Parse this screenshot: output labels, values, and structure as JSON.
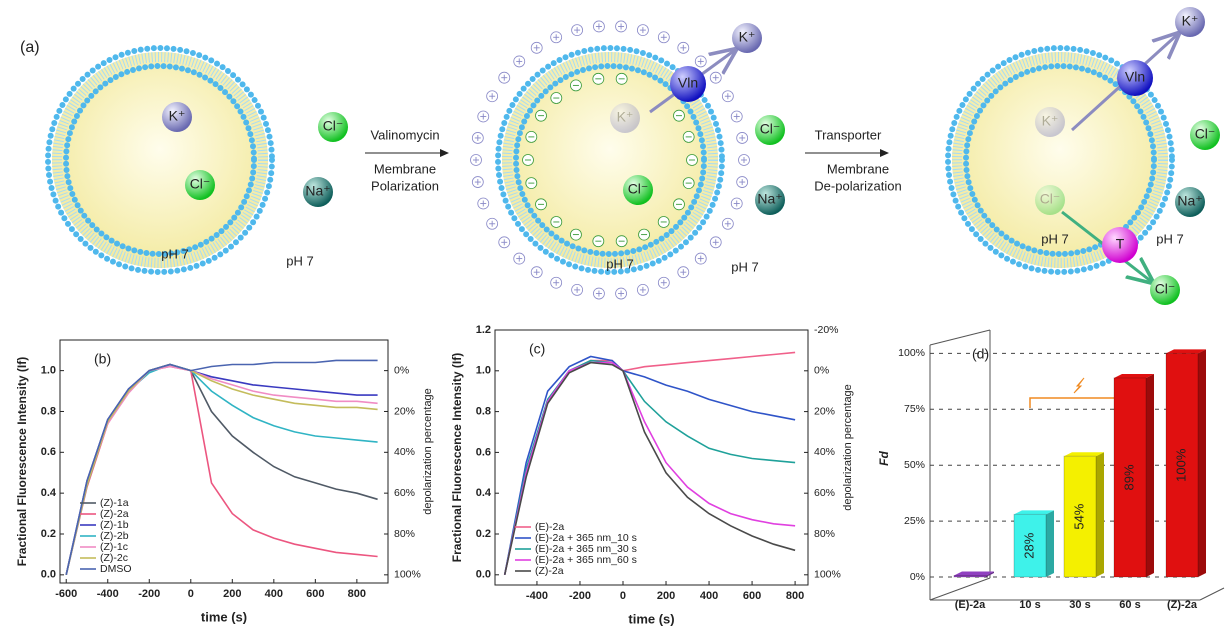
{
  "diagram": {
    "label": "(a)",
    "vesicles": [
      {
        "ions": [
          "K⁺",
          "Cl⁻",
          "Cl⁻",
          "Na⁺"
        ],
        "ph": [
          "pH 7",
          "pH 7"
        ]
      },
      {
        "ions": [
          "K⁺",
          "Cl⁻",
          "Cl⁻",
          "Na⁺",
          "K⁺"
        ],
        "carriers": [
          "Vln"
        ],
        "ph": [
          "pH 7",
          "pH 7"
        ]
      },
      {
        "ions": [
          "K⁺",
          "Cl⁻",
          "Cl⁻",
          "Na⁺",
          "K⁺",
          "Cl⁻"
        ],
        "carriers": [
          "Vln",
          "T"
        ],
        "ph": [
          "pH 7",
          "pH 7"
        ]
      }
    ],
    "steps": [
      {
        "reagent": "Valinomycin",
        "effect": [
          "Membrane",
          "Polarization"
        ]
      },
      {
        "reagent": "Transporter",
        "effect": [
          "Membrane",
          "De-polarization"
        ]
      }
    ]
  },
  "chart_data": [
    {
      "type": "line",
      "label": "(b)",
      "xlabel": "time (s)",
      "ylabel": "Fractional Fluorescence Intensity (If)",
      "y2label": "depolarization percentage",
      "x": [
        -600,
        -500,
        -400,
        -300,
        -200,
        -100,
        0,
        100,
        200,
        300,
        400,
        500,
        600,
        700,
        800,
        900
      ],
      "xlim": [
        -630,
        950
      ],
      "xticks": [
        -600,
        -400,
        -200,
        0,
        200,
        400,
        600,
        800
      ],
      "ylim": [
        -0.04,
        1.15
      ],
      "yticks": [
        {
          "value": 0,
          "label": "0.0"
        },
        0.2,
        0.4,
        0.6,
        0.8,
        {
          "value": 1,
          "label": "1.0"
        }
      ],
      "y2lim": [
        104,
        -15
      ],
      "y2ticks": [
        {
          "value": 0,
          "label": "0%"
        },
        {
          "value": 20,
          "label": "20%"
        },
        {
          "value": 40,
          "label": "40%"
        },
        {
          "value": 60,
          "label": "60%"
        },
        {
          "value": 80,
          "label": "80%"
        },
        {
          "value": 100,
          "label": "100%"
        }
      ],
      "legend": "lower left",
      "series": [
        {
          "name": "(Z)-1a",
          "color": "#505a66",
          "values": [
            0.0,
            0.45,
            0.75,
            0.9,
            1.0,
            1.03,
            1.0,
            0.8,
            0.68,
            0.6,
            0.53,
            0.48,
            0.45,
            0.42,
            0.4,
            0.37
          ]
        },
        {
          "name": "(Z)-2a",
          "color": "#ec5680",
          "values": [
            0.0,
            0.43,
            0.74,
            0.9,
            1.0,
            1.02,
            1.0,
            0.45,
            0.3,
            0.22,
            0.18,
            0.15,
            0.13,
            0.11,
            0.1,
            0.09
          ]
        },
        {
          "name": "(Z)-1b",
          "color": "#3a3ac0",
          "values": [
            0.0,
            0.46,
            0.76,
            0.91,
            1.0,
            1.03,
            1.0,
            0.97,
            0.95,
            0.93,
            0.92,
            0.91,
            0.9,
            0.89,
            0.88,
            0.88
          ]
        },
        {
          "name": "(Z)-2b",
          "color": "#30b4c4",
          "values": [
            0.0,
            0.44,
            0.75,
            0.9,
            0.99,
            1.03,
            1.0,
            0.9,
            0.83,
            0.77,
            0.73,
            0.7,
            0.68,
            0.67,
            0.66,
            0.65
          ]
        },
        {
          "name": "(Z)-1c",
          "color": "#f08cc4",
          "values": [
            0.0,
            0.45,
            0.74,
            0.89,
            1.0,
            1.02,
            1.0,
            0.96,
            0.93,
            0.9,
            0.88,
            0.87,
            0.86,
            0.85,
            0.85,
            0.84
          ]
        },
        {
          "name": "(Z)-2c",
          "color": "#c4bc5c",
          "values": [
            0.0,
            0.44,
            0.75,
            0.9,
            1.0,
            1.03,
            1.0,
            0.95,
            0.91,
            0.88,
            0.86,
            0.84,
            0.83,
            0.82,
            0.82,
            0.81
          ]
        },
        {
          "name": "DMSO",
          "color": "#4a64b0",
          "values": [
            0.0,
            0.46,
            0.76,
            0.91,
            1.0,
            1.03,
            1.0,
            1.02,
            1.03,
            1.03,
            1.04,
            1.04,
            1.04,
            1.05,
            1.05,
            1.05
          ]
        }
      ]
    },
    {
      "type": "line",
      "label": "(c)",
      "xlabel": "time (s)",
      "ylabel": "Fractional Fluorescence Intensity (If)",
      "y2label": "depolarization percentage",
      "x": [
        -550,
        -450,
        -350,
        -250,
        -150,
        -50,
        0,
        100,
        200,
        300,
        400,
        500,
        600,
        700,
        800
      ],
      "xlim": [
        -595,
        860
      ],
      "xticks": [
        -400,
        -200,
        0,
        200,
        400,
        600,
        800
      ],
      "ylim": [
        -0.05,
        1.2
      ],
      "yticks": [
        {
          "value": 0,
          "label": "0.0"
        },
        0.2,
        0.4,
        0.6,
        0.8,
        {
          "value": 1,
          "label": "1.0"
        },
        1.2
      ],
      "y2lim": [
        105,
        -20
      ],
      "y2ticks": [
        {
          "value": -20,
          "label": "-20%"
        },
        {
          "value": 0,
          "label": "0%"
        },
        {
          "value": 20,
          "label": "20%"
        },
        {
          "value": 40,
          "label": "40%"
        },
        {
          "value": 60,
          "label": "60%"
        },
        {
          "value": 80,
          "label": "80%"
        },
        {
          "value": 100,
          "label": "100%"
        }
      ],
      "legend": "lower left",
      "series": [
        {
          "name": "(E)-2a",
          "color": "#f0608a",
          "values": [
            0.0,
            0.5,
            0.85,
            1.0,
            1.05,
            1.05,
            1.0,
            1.02,
            1.03,
            1.04,
            1.05,
            1.06,
            1.07,
            1.08,
            1.09
          ]
        },
        {
          "name": "(E)-2a + 365 nm_10 s",
          "color": "#2f54c8",
          "values": [
            0.0,
            0.55,
            0.9,
            1.02,
            1.07,
            1.05,
            1.0,
            0.97,
            0.93,
            0.9,
            0.86,
            0.83,
            0.8,
            0.78,
            0.76
          ]
        },
        {
          "name": "(E)-2a + 365 nm_30 s",
          "color": "#1fa19a",
          "values": [
            0.0,
            0.52,
            0.86,
            1.0,
            1.05,
            1.04,
            1.0,
            0.85,
            0.75,
            0.68,
            0.62,
            0.59,
            0.57,
            0.56,
            0.55
          ]
        },
        {
          "name": "(E)-2a + 365 nm_60 s",
          "color": "#e040e0",
          "values": [
            0.0,
            0.5,
            0.85,
            1.0,
            1.04,
            1.04,
            1.0,
            0.75,
            0.55,
            0.43,
            0.35,
            0.3,
            0.27,
            0.25,
            0.24
          ]
        },
        {
          "name": "(Z)-2a",
          "color": "#4a4a4a",
          "values": [
            0.0,
            0.48,
            0.84,
            0.99,
            1.04,
            1.03,
            1.0,
            0.7,
            0.5,
            0.38,
            0.3,
            0.24,
            0.19,
            0.15,
            0.12
          ]
        }
      ]
    },
    {
      "type": "bar3d",
      "label": "(d)",
      "ylabel": "Fd",
      "categories": [
        "(E)-2a",
        "10 s",
        "30 s",
        "60 s",
        "(Z)-2a"
      ],
      "values": [
        0,
        28,
        54,
        89,
        100
      ],
      "value_labels": [
        null,
        "28%",
        "54%",
        "89%",
        "100%"
      ],
      "colors": [
        "#9040c0",
        "#3ef2ea",
        "#f4f000",
        "#e01010",
        "#e01010"
      ],
      "ylim": [
        0,
        106
      ],
      "yticks": [
        {
          "value": 0,
          "label": "0%"
        },
        {
          "value": 25,
          "label": "25%"
        },
        {
          "value": 50,
          "label": "50%"
        },
        {
          "value": 75,
          "label": "75%"
        },
        {
          "value": 100,
          "label": "100%"
        }
      ],
      "grid": true
    }
  ]
}
